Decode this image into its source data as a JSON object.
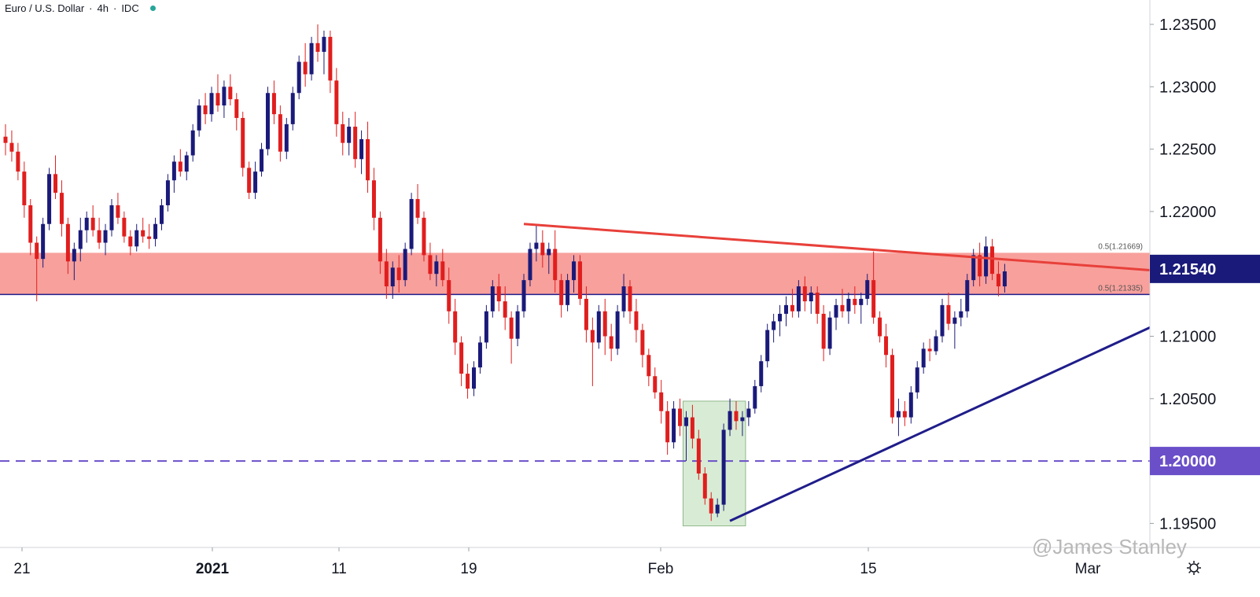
{
  "header": {
    "symbol": "Euro / U.S. Dollar",
    "sep": "·",
    "timeframe": "4h",
    "source": "IDC",
    "status_color": "#26a69a"
  },
  "watermark": "@James Stanley",
  "settings_icon": "gear-icon",
  "colors": {
    "up": "#1a1a7a",
    "down": "#e01e1e",
    "zone_fill": "#f8a09c",
    "resistance_line": "#e8403a",
    "support_line": "#1f1d8a",
    "level_line": "#6a4fc9",
    "box_fill": "#d8ecd5",
    "box_stroke": "#8fb88a",
    "price_badge_bg": "#1a1a7a",
    "level_badge_bg": "#6a4fc9"
  },
  "chart_data": {
    "type": "candlestick",
    "title": "Euro / U.S. Dollar · 4h · IDC",
    "y_ticks": [
      "1.23500",
      "1.23000",
      "1.22500",
      "1.22000",
      "1.21000",
      "1.20500",
      "1.19500"
    ],
    "ylim": [
      1.1935,
      1.2363
    ],
    "x_tick_labels": [
      "21",
      "2021",
      "11",
      "19",
      "Feb",
      "15",
      "Mar"
    ],
    "current_price": "1.21540",
    "level_badge": "1.20000",
    "zone": {
      "top": 1.21669,
      "bottom": 1.21335,
      "top_label": "0.5(1.21669)",
      "bottom_label": "0.5(1.21335)"
    },
    "horizontal_levels": [
      {
        "value": 1.2,
        "style": "dashed"
      },
      {
        "value": 1.21335,
        "style": "solid"
      }
    ],
    "trendlines": [
      {
        "name": "resistance",
        "from": [
          83,
          1.219
        ],
        "to": [
          180,
          1.2153
        ]
      },
      {
        "name": "support",
        "from": [
          116,
          1.1952
        ],
        "to": [
          180,
          1.2107
        ]
      }
    ],
    "highlight_box": {
      "x_start": 109,
      "x_end": 118,
      "low": 1.1948,
      "high": 1.2048
    },
    "candles": [
      [
        1.226,
        1.227,
        1.2245,
        1.2255
      ],
      [
        1.2255,
        1.2265,
        1.224,
        1.2248
      ],
      [
        1.2248,
        1.2255,
        1.2225,
        1.2232
      ],
      [
        1.2232,
        1.224,
        1.2195,
        1.2205
      ],
      [
        1.2205,
        1.221,
        1.2165,
        1.2175
      ],
      [
        1.2175,
        1.218,
        1.2128,
        1.2162
      ],
      [
        1.2162,
        1.2195,
        1.2155,
        1.219
      ],
      [
        1.219,
        1.2235,
        1.2185,
        1.223
      ],
      [
        1.223,
        1.2245,
        1.221,
        1.2215
      ],
      [
        1.2215,
        1.2225,
        1.218,
        1.219
      ],
      [
        1.219,
        1.2195,
        1.215,
        1.216
      ],
      [
        1.216,
        1.2175,
        1.2145,
        1.217
      ],
      [
        1.217,
        1.2195,
        1.216,
        1.2185
      ],
      [
        1.2185,
        1.22,
        1.2175,
        1.2195
      ],
      [
        1.2195,
        1.2205,
        1.218,
        1.2185
      ],
      [
        1.2185,
        1.2195,
        1.217,
        1.2175
      ],
      [
        1.2175,
        1.219,
        1.2165,
        1.2185
      ],
      [
        1.2185,
        1.221,
        1.218,
        1.2205
      ],
      [
        1.2205,
        1.2215,
        1.219,
        1.2195
      ],
      [
        1.2195,
        1.22,
        1.2175,
        1.218
      ],
      [
        1.218,
        1.2185,
        1.2165,
        1.2172
      ],
      [
        1.2172,
        1.219,
        1.2168,
        1.2185
      ],
      [
        1.2185,
        1.2195,
        1.2175,
        1.218
      ],
      [
        1.218,
        1.219,
        1.217,
        1.2178
      ],
      [
        1.2178,
        1.2195,
        1.2172,
        1.219
      ],
      [
        1.219,
        1.221,
        1.2185,
        1.2205
      ],
      [
        1.2205,
        1.223,
        1.22,
        1.2225
      ],
      [
        1.2225,
        1.2245,
        1.2215,
        1.224
      ],
      [
        1.224,
        1.225,
        1.2228,
        1.2232
      ],
      [
        1.2232,
        1.2248,
        1.2225,
        1.2245
      ],
      [
        1.2245,
        1.227,
        1.224,
        1.2265
      ],
      [
        1.2265,
        1.229,
        1.226,
        1.2285
      ],
      [
        1.2285,
        1.2295,
        1.227,
        1.2278
      ],
      [
        1.2278,
        1.23,
        1.2272,
        1.2295
      ],
      [
        1.2295,
        1.231,
        1.228,
        1.2285
      ],
      [
        1.2285,
        1.2305,
        1.2275,
        1.23
      ],
      [
        1.23,
        1.231,
        1.2285,
        1.229
      ],
      [
        1.229,
        1.2295,
        1.2265,
        1.2275
      ],
      [
        1.2275,
        1.228,
        1.2228,
        1.2235
      ],
      [
        1.2235,
        1.224,
        1.221,
        1.2215
      ],
      [
        1.2215,
        1.224,
        1.221,
        1.2232
      ],
      [
        1.2232,
        1.2255,
        1.2228,
        1.225
      ],
      [
        1.225,
        1.23,
        1.2245,
        1.2295
      ],
      [
        1.2295,
        1.2305,
        1.227,
        1.2278
      ],
      [
        1.2278,
        1.2285,
        1.224,
        1.2248
      ],
      [
        1.2248,
        1.2275,
        1.2242,
        1.227
      ],
      [
        1.227,
        1.23,
        1.2265,
        1.2295
      ],
      [
        1.2295,
        1.2325,
        1.229,
        1.232
      ],
      [
        1.232,
        1.2335,
        1.23,
        1.231
      ],
      [
        1.231,
        1.234,
        1.2305,
        1.2335
      ],
      [
        1.2335,
        1.235,
        1.232,
        1.2328
      ],
      [
        1.2328,
        1.2345,
        1.231,
        1.234
      ],
      [
        1.234,
        1.2345,
        1.2295,
        1.2305
      ],
      [
        1.2305,
        1.2315,
        1.226,
        1.227
      ],
      [
        1.227,
        1.228,
        1.2245,
        1.2255
      ],
      [
        1.2255,
        1.2275,
        1.2245,
        1.2268
      ],
      [
        1.2268,
        1.228,
        1.2235,
        1.2242
      ],
      [
        1.2242,
        1.2265,
        1.223,
        1.2258
      ],
      [
        1.2258,
        1.2272,
        1.2215,
        1.2225
      ],
      [
        1.2225,
        1.2235,
        1.2185,
        1.2195
      ],
      [
        1.2195,
        1.22,
        1.215,
        1.216
      ],
      [
        1.216,
        1.217,
        1.213,
        1.214
      ],
      [
        1.214,
        1.216,
        1.213,
        1.2155
      ],
      [
        1.2155,
        1.2165,
        1.2135,
        1.2145
      ],
      [
        1.2145,
        1.2175,
        1.214,
        1.217
      ],
      [
        1.217,
        1.2215,
        1.2165,
        1.221
      ],
      [
        1.221,
        1.2222,
        1.219,
        1.2195
      ],
      [
        1.2195,
        1.22,
        1.216,
        1.2165
      ],
      [
        1.2165,
        1.2175,
        1.2145,
        1.215
      ],
      [
        1.215,
        1.2165,
        1.214,
        1.216
      ],
      [
        1.216,
        1.217,
        1.214,
        1.2145
      ],
      [
        1.2145,
        1.2155,
        1.211,
        1.212
      ],
      [
        1.212,
        1.213,
        1.2085,
        1.2095
      ],
      [
        1.2095,
        1.21,
        1.206,
        1.207
      ],
      [
        1.207,
        1.2078,
        1.205,
        1.2058
      ],
      [
        1.2058,
        1.208,
        1.2052,
        1.2075
      ],
      [
        1.2075,
        1.21,
        1.207,
        1.2095
      ],
      [
        1.2095,
        1.2125,
        1.209,
        1.212
      ],
      [
        1.212,
        1.2145,
        1.2115,
        1.214
      ],
      [
        1.214,
        1.215,
        1.212,
        1.2128
      ],
      [
        1.2128,
        1.214,
        1.2105,
        1.2115
      ],
      [
        1.2115,
        1.212,
        1.2078,
        1.2098
      ],
      [
        1.2098,
        1.2125,
        1.2092,
        1.212
      ],
      [
        1.212,
        1.215,
        1.2115,
        1.2145
      ],
      [
        1.2145,
        1.2175,
        1.214,
        1.217
      ],
      [
        1.217,
        1.219,
        1.216,
        1.2175
      ],
      [
        1.2175,
        1.2185,
        1.2155,
        1.2165
      ],
      [
        1.2165,
        1.2175,
        1.215,
        1.217
      ],
      [
        1.217,
        1.2185,
        1.2135,
        1.2145
      ],
      [
        1.2145,
        1.215,
        1.2115,
        1.2125
      ],
      [
        1.2125,
        1.215,
        1.212,
        1.2145
      ],
      [
        1.2145,
        1.2165,
        1.2135,
        1.216
      ],
      [
        1.216,
        1.2165,
        1.2125,
        1.213
      ],
      [
        1.213,
        1.214,
        1.2095,
        1.2105
      ],
      [
        1.2105,
        1.2115,
        1.206,
        1.2095
      ],
      [
        1.2095,
        1.2125,
        1.209,
        1.212
      ],
      [
        1.212,
        1.213,
        1.2085,
        1.21
      ],
      [
        1.21,
        1.211,
        1.208,
        1.209
      ],
      [
        1.209,
        1.2125,
        1.2085,
        1.212
      ],
      [
        1.212,
        1.215,
        1.2115,
        1.214
      ],
      [
        1.214,
        1.2145,
        1.211,
        1.212
      ],
      [
        1.212,
        1.213,
        1.2095,
        1.2105
      ],
      [
        1.2105,
        1.211,
        1.2075,
        1.2085
      ],
      [
        1.2085,
        1.209,
        1.206,
        1.2068
      ],
      [
        1.2068,
        1.2075,
        1.205,
        1.2055
      ],
      [
        1.2055,
        1.2065,
        1.203,
        1.204
      ],
      [
        1.204,
        1.2048,
        1.2005,
        1.2015
      ],
      [
        1.2015,
        1.2048,
        1.201,
        1.2042
      ],
      [
        1.2042,
        1.205,
        1.202,
        1.2028
      ],
      [
        1.2028,
        1.204,
        1.2,
        1.2035
      ],
      [
        1.2035,
        1.2045,
        1.201,
        1.2018
      ],
      [
        1.2018,
        1.2025,
        1.1985,
        1.199
      ],
      [
        1.199,
        1.1995,
        1.1965,
        1.197
      ],
      [
        1.197,
        1.1975,
        1.1952,
        1.1958
      ],
      [
        1.1958,
        1.197,
        1.1955,
        1.1965
      ],
      [
        1.1965,
        1.203,
        1.196,
        1.2025
      ],
      [
        1.2025,
        1.205,
        1.202,
        1.204
      ],
      [
        1.204,
        1.2048,
        1.2025,
        1.2032
      ],
      [
        1.2032,
        1.204,
        1.202,
        1.2035
      ],
      [
        1.2035,
        1.2048,
        1.2028,
        1.2042
      ],
      [
        1.2042,
        1.2065,
        1.2038,
        1.206
      ],
      [
        1.206,
        1.2085,
        1.2055,
        1.208
      ],
      [
        1.208,
        1.211,
        1.2075,
        1.2105
      ],
      [
        1.2105,
        1.2118,
        1.2095,
        1.2112
      ],
      [
        1.2112,
        1.2125,
        1.21,
        1.2118
      ],
      [
        1.2118,
        1.2132,
        1.2108,
        1.2125
      ],
      [
        1.2125,
        1.2138,
        1.2115,
        1.212
      ],
      [
        1.212,
        1.2145,
        1.2115,
        1.214
      ],
      [
        1.214,
        1.2148,
        1.212,
        1.2128
      ],
      [
        1.2128,
        1.214,
        1.2118,
        1.2135
      ],
      [
        1.2135,
        1.214,
        1.211,
        1.2118
      ],
      [
        1.2118,
        1.2125,
        1.208,
        1.209
      ],
      [
        1.209,
        1.212,
        1.2085,
        1.2115
      ],
      [
        1.2115,
        1.213,
        1.2105,
        1.2125
      ],
      [
        1.2125,
        1.2138,
        1.2115,
        1.212
      ],
      [
        1.212,
        1.2135,
        1.211,
        1.213
      ],
      [
        1.213,
        1.214,
        1.2118,
        1.2125
      ],
      [
        1.2125,
        1.2135,
        1.211,
        1.213
      ],
      [
        1.213,
        1.215,
        1.2125,
        1.2145
      ],
      [
        1.2145,
        1.2168,
        1.211,
        1.2115
      ],
      [
        1.2115,
        1.212,
        1.2095,
        1.21
      ],
      [
        1.21,
        1.211,
        1.2075,
        1.2085
      ],
      [
        1.2085,
        1.209,
        1.203,
        1.2035
      ],
      [
        1.2035,
        1.205,
        1.202,
        1.204
      ],
      [
        1.204,
        1.2048,
        1.2028,
        1.2035
      ],
      [
        1.2035,
        1.206,
        1.203,
        1.2055
      ],
      [
        1.2055,
        1.208,
        1.205,
        1.2075
      ],
      [
        1.2075,
        1.2095,
        1.207,
        1.209
      ],
      [
        1.209,
        1.2098,
        1.208,
        1.2088
      ],
      [
        1.2088,
        1.2105,
        1.2085,
        1.21
      ],
      [
        1.21,
        1.213,
        1.2095,
        1.2125
      ],
      [
        1.2125,
        1.2135,
        1.2105,
        1.211
      ],
      [
        1.211,
        1.212,
        1.209,
        1.2115
      ],
      [
        1.2115,
        1.213,
        1.2108,
        1.212
      ],
      [
        1.212,
        1.215,
        1.2115,
        1.2145
      ],
      [
        1.2145,
        1.217,
        1.214,
        1.2165
      ],
      [
        1.2165,
        1.2175,
        1.214,
        1.2148
      ],
      [
        1.2148,
        1.218,
        1.2142,
        1.2172
      ],
      [
        1.2172,
        1.2178,
        1.2145,
        1.215
      ],
      [
        1.215,
        1.216,
        1.2132,
        1.214
      ],
      [
        1.214,
        1.2158,
        1.2135,
        1.2152
      ]
    ]
  }
}
